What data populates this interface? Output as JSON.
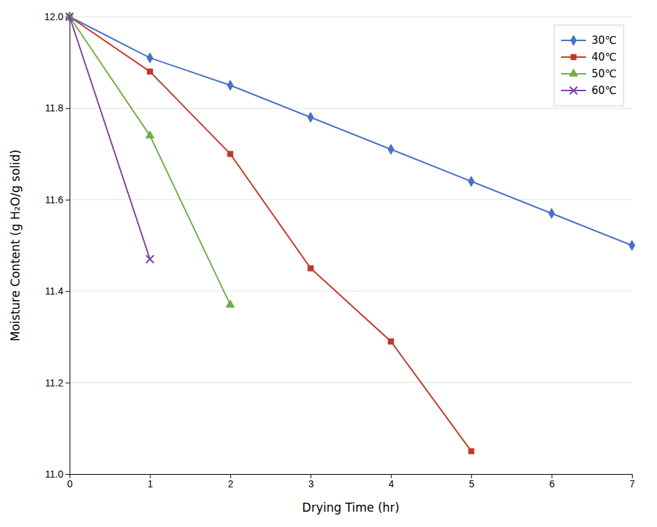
{
  "chart_data": {
    "type": "line",
    "xlabel": "Drying Time (hr)",
    "ylabel": "Moisture Content (g H₂O/g solid)",
    "series": [
      {
        "name": "30℃",
        "color": "#4472C4",
        "marker": "diamond",
        "x": [
          0,
          1,
          2,
          3,
          4,
          5,
          6,
          7
        ],
        "values": [
          12.0,
          11.91,
          11.85,
          11.78,
          11.71,
          11.64,
          11.57,
          11.5
        ]
      },
      {
        "name": "40℃",
        "color": "#C0392B",
        "marker": "square",
        "x": [
          0,
          1,
          2,
          3,
          4,
          5
        ],
        "values": [
          12.0,
          11.88,
          11.7,
          11.45,
          11.29,
          11.05
        ]
      },
      {
        "name": "50℃",
        "color": "#70AD47",
        "marker": "triangle",
        "x": [
          0,
          1,
          2
        ],
        "values": [
          12.0,
          11.74,
          11.37
        ]
      },
      {
        "name": "60℃",
        "color": "#7B3FA0",
        "marker": "x",
        "x": [
          0,
          1
        ],
        "values": [
          12.0,
          11.47
        ]
      }
    ],
    "xlim": [
      0,
      7
    ],
    "ylim": [
      11.0,
      12.0
    ],
    "xticks": [
      0,
      1,
      2,
      3,
      4,
      5,
      6,
      7
    ],
    "yticks": [
      {
        "value": 11.0,
        "label": "11.0"
      },
      11.2,
      11.4,
      11.6,
      11.8,
      {
        "value": 12.0,
        "label": "12.0"
      }
    ],
    "grid": true,
    "legend": "upper right"
  }
}
